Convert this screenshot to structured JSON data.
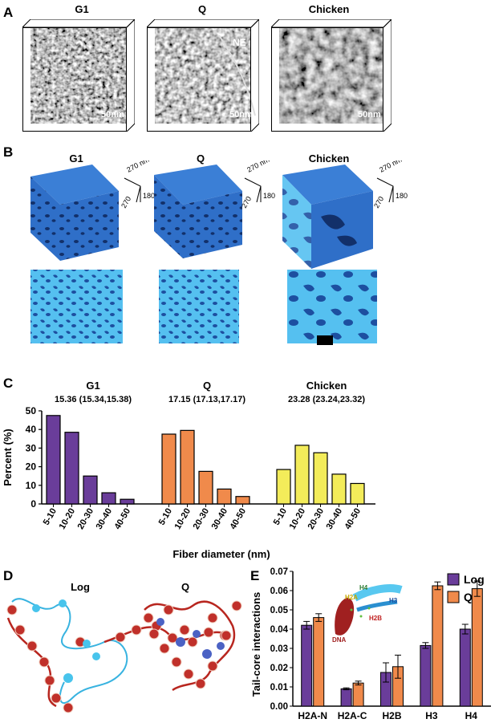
{
  "panels": {
    "a": "A",
    "b": "B",
    "c": "C",
    "d": "D",
    "e": "E"
  },
  "panel_a": {
    "titles": [
      "G1",
      "Q",
      "Chicken"
    ],
    "scale_bar": "50nm",
    "ne_label": "NE"
  },
  "panel_b": {
    "titles": [
      "G1",
      "Q",
      "Chicken"
    ],
    "dims": [
      "270 nm",
      "270",
      "180"
    ]
  },
  "panel_d": {
    "titles": [
      "Log",
      "Q"
    ]
  },
  "panel_e_inset": {
    "labels": [
      "H4",
      "H2A",
      "H3",
      "H2B",
      "DNA"
    ]
  },
  "colors": {
    "g1": "#6a3d9a",
    "q": "#f08a4b",
    "chicken": "#f3ec5a",
    "log": "#6a3d9a",
    "surface_dark": "#2f6fc8",
    "surface_light": "#55c0f0"
  },
  "chart_data": [
    {
      "type": "bar",
      "ylabel": "Percent (%)",
      "xlabel": "Fiber diameter (nm)",
      "ylim": [
        0,
        50
      ],
      "yticks": [
        0,
        10,
        20,
        30,
        40,
        50
      ],
      "categories": [
        "5-10",
        "10-20",
        "20-30",
        "30-40",
        "40-50"
      ],
      "groups": [
        {
          "name": "G1",
          "stats": "15.36 (15.34,15.38)",
          "values": [
            47.5,
            38.5,
            15,
            6,
            2.5
          ],
          "color": "#6a3d9a"
        },
        {
          "name": "Q",
          "stats": "17.15 (17.13,17.17)",
          "values": [
            37.5,
            39.5,
            17.5,
            8,
            4
          ],
          "color": "#f08a4b"
        },
        {
          "name": "Chicken",
          "stats": "23.28 (23.24,23.32)",
          "values": [
            18.5,
            31.5,
            27.5,
            16,
            11
          ],
          "color": "#f3ec5a"
        }
      ]
    },
    {
      "type": "bar",
      "ylabel": "Tail-core interactions",
      "ylim": [
        0,
        0.07
      ],
      "yticks": [
        "0.00",
        "0.01",
        "0.02",
        "0.03",
        "0.04",
        "0.05",
        "0.06",
        "0.07"
      ],
      "categories": [
        "H2A-N",
        "H2A-C",
        "H2B",
        "H3",
        "H4"
      ],
      "series": [
        {
          "name": "Log",
          "values": [
            0.042,
            0.009,
            0.0175,
            0.0315,
            0.04
          ],
          "errors": [
            0.002,
            0.0005,
            0.005,
            0.0015,
            0.0025
          ],
          "color": "#6a3d9a"
        },
        {
          "name": "Q",
          "values": [
            0.046,
            0.012,
            0.0205,
            0.0625,
            0.061
          ],
          "errors": [
            0.002,
            0.001,
            0.006,
            0.002,
            0.004
          ],
          "color": "#f08a4b"
        }
      ],
      "legend": "top-right"
    }
  ]
}
